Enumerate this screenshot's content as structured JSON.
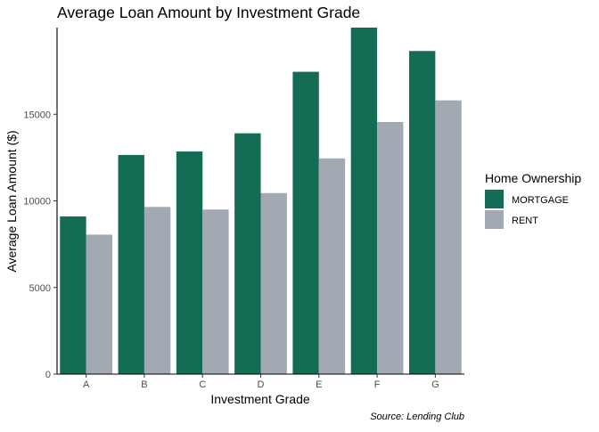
{
  "chart_data": {
    "type": "bar",
    "title": "Average Loan Amount by Investment Grade",
    "xlabel": "Investment Grade",
    "ylabel": "Average Loan Amount ($)",
    "caption": "Source: Lending Club",
    "categories": [
      "A",
      "B",
      "C",
      "D",
      "E",
      "F",
      "G"
    ],
    "series": [
      {
        "name": "MORTGAGE",
        "color": "#156C55",
        "values": [
          9100,
          12650,
          12850,
          13900,
          17450,
          20000,
          18650
        ]
      },
      {
        "name": "RENT",
        "color": "#A2A9B2",
        "values": [
          8050,
          9650,
          9500,
          10450,
          12450,
          14550,
          15800
        ]
      }
    ],
    "ylim": [
      0,
      20000
    ],
    "yticks": [
      0,
      5000,
      10000,
      15000
    ],
    "ytick_labels": [
      "0",
      "5000",
      "10000",
      "15000"
    ],
    "grid": false,
    "legend": {
      "title": "Home Ownership",
      "position": "right"
    }
  }
}
